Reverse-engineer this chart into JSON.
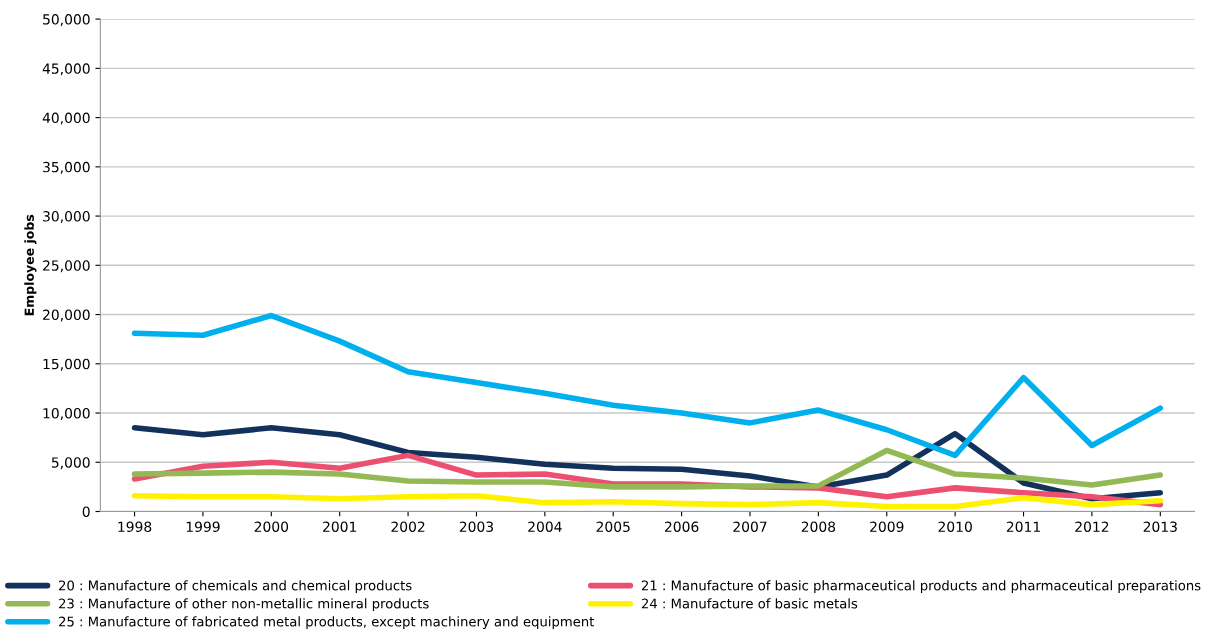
{
  "chart_data": {
    "type": "line",
    "ylabel": "Employee jobs",
    "categories": [
      "1998",
      "1999",
      "2000",
      "2001",
      "2002",
      "2003",
      "2004",
      "2005",
      "2006",
      "2007",
      "2008",
      "2009",
      "2010",
      "2011",
      "2012",
      "2013"
    ],
    "series": [
      {
        "name": "20 : Manufacture of chemicals and chemical products",
        "color": "#13325b",
        "values": [
          8500,
          7800,
          8500,
          7800,
          6000,
          5500,
          4800,
          4400,
          4300,
          3600,
          2500,
          3700,
          7900,
          2900,
          1300,
          1900
        ]
      },
      {
        "name": "21 : Manufacture of basic pharmaceutical products and pharmaceutical preparations",
        "color": "#ec4f6f",
        "values": [
          3300,
          4600,
          5000,
          4400,
          5700,
          3700,
          3800,
          2800,
          2800,
          2500,
          2400,
          1500,
          2400,
          1900,
          1500,
          700
        ]
      },
      {
        "name": "23 : Manufacture of other non-metallic mineral products",
        "color": "#92b954",
        "values": [
          3800,
          3900,
          4000,
          3800,
          3100,
          3000,
          3000,
          2500,
          2500,
          2600,
          2600,
          6200,
          3800,
          3400,
          2700,
          3700
        ]
      },
      {
        "name": "24 : Manufacture of basic metals",
        "color": "#fff200",
        "values": [
          1600,
          1500,
          1500,
          1300,
          1500,
          1600,
          900,
          1000,
          800,
          700,
          900,
          500,
          500,
          1400,
          700,
          1100
        ]
      },
      {
        "name": "25 : Manufacture of fabricated metal products, except machinery and equipment",
        "color": "#00b0ec",
        "values": [
          18100,
          17900,
          19900,
          17300,
          14200,
          13100,
          12000,
          10800,
          10000,
          9000,
          10300,
          8300,
          5700,
          13600,
          6700,
          10500
        ]
      }
    ],
    "ylim": [
      0,
      50000
    ],
    "yticks": [
      {
        "value": 0,
        "label": "0"
      },
      {
        "value": 5000,
        "label": "5,000"
      },
      {
        "value": 10000,
        "label": "10,000"
      },
      {
        "value": 15000,
        "label": "15,000"
      },
      {
        "value": 20000,
        "label": "20,000"
      },
      {
        "value": 25000,
        "label": "25,000"
      },
      {
        "value": 30000,
        "label": "30,000"
      },
      {
        "value": 35000,
        "label": "35,000"
      },
      {
        "value": 40000,
        "label": "40,000"
      },
      {
        "value": 45000,
        "label": "45,000"
      },
      {
        "value": 50000,
        "label": "50,000"
      }
    ],
    "grid": "y",
    "legend": "bottom",
    "marker": "none",
    "line_style": "solid"
  }
}
